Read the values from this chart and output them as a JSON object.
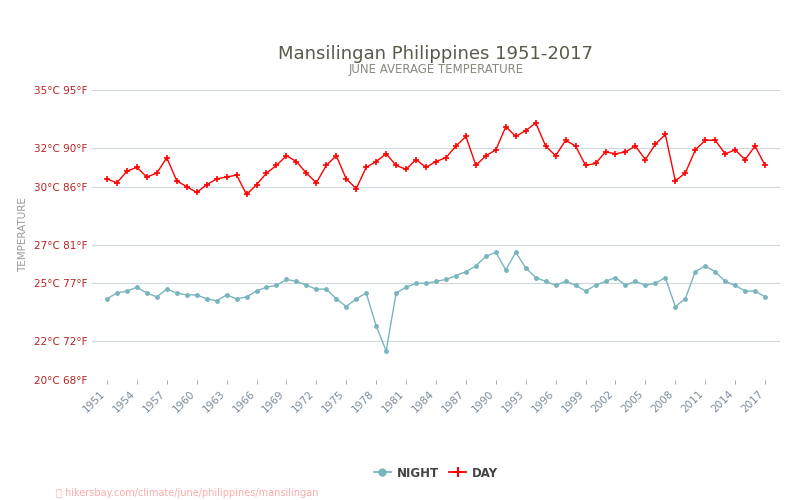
{
  "title": "Mansilingan Philippines 1951-2017",
  "subtitle": "JUNE AVERAGE TEMPERATURE",
  "xlabel_url": "hikersbay.com/climate/june/philippines/mansilingan",
  "ylabel": "TEMPERATURE",
  "years": [
    1951,
    1952,
    1953,
    1954,
    1955,
    1956,
    1957,
    1958,
    1959,
    1960,
    1961,
    1962,
    1963,
    1964,
    1965,
    1966,
    1967,
    1968,
    1969,
    1970,
    1971,
    1972,
    1973,
    1974,
    1975,
    1976,
    1977,
    1978,
    1979,
    1980,
    1981,
    1982,
    1983,
    1984,
    1985,
    1986,
    1987,
    1988,
    1989,
    1990,
    1991,
    1992,
    1993,
    1994,
    1995,
    1996,
    1997,
    1998,
    1999,
    2000,
    2001,
    2002,
    2003,
    2004,
    2005,
    2006,
    2007,
    2008,
    2009,
    2010,
    2011,
    2012,
    2013,
    2014,
    2015,
    2016,
    2017
  ],
  "day_temps": [
    30.4,
    30.2,
    30.8,
    31.0,
    30.5,
    30.7,
    31.5,
    30.3,
    30.0,
    29.7,
    30.1,
    30.4,
    30.5,
    30.6,
    29.6,
    30.1,
    30.7,
    31.1,
    31.6,
    31.3,
    30.7,
    30.2,
    31.1,
    31.6,
    30.4,
    29.9,
    31.0,
    31.3,
    31.7,
    31.1,
    30.9,
    31.4,
    31.0,
    31.3,
    31.5,
    32.1,
    32.6,
    31.1,
    31.6,
    31.9,
    33.1,
    32.6,
    32.9,
    33.3,
    32.1,
    31.6,
    32.4,
    32.1,
    31.1,
    31.2,
    31.8,
    31.7,
    31.8,
    32.1,
    31.4,
    32.2,
    32.7,
    30.3,
    30.7,
    31.9,
    32.4,
    32.4,
    31.7,
    31.9,
    31.4,
    32.1,
    31.1
  ],
  "night_temps": [
    24.2,
    24.5,
    24.6,
    24.8,
    24.5,
    24.3,
    24.7,
    24.5,
    24.4,
    24.4,
    24.2,
    24.1,
    24.4,
    24.2,
    24.3,
    24.6,
    24.8,
    24.9,
    25.2,
    25.1,
    24.9,
    24.7,
    24.7,
    24.2,
    23.8,
    24.2,
    24.5,
    22.8,
    21.5,
    24.5,
    24.8,
    25.0,
    25.0,
    25.1,
    25.2,
    25.4,
    25.6,
    25.9,
    26.4,
    26.6,
    25.7,
    26.6,
    25.8,
    25.3,
    25.1,
    24.9,
    25.1,
    24.9,
    24.6,
    24.9,
    25.1,
    25.3,
    24.9,
    25.1,
    24.9,
    25.0,
    25.3,
    23.8,
    24.2,
    25.6,
    25.9,
    25.6,
    25.1,
    24.9,
    24.6,
    24.6,
    24.3
  ],
  "day_color": "#ff0000",
  "night_color": "#7ab5be",
  "bg_color": "#ffffff",
  "grid_color": "#d0d8e0",
  "title_color": "#5a5a4a",
  "subtitle_color": "#8a8a7a",
  "ylabel_color": "#999999",
  "tick_color": "#7a8a9a",
  "url_color": "#ffaaaa",
  "ylim_min": 20,
  "ylim_max": 35,
  "yticks_c": [
    20,
    22,
    25,
    27,
    30,
    32,
    35
  ],
  "ytick_labels": [
    "20°C 68°F",
    "22°C 72°F",
    "25°C 77°F",
    "27°C 81°F",
    "30°C 86°F",
    "32°C 90°F",
    "35°C 95°F"
  ],
  "xtick_years": [
    1951,
    1954,
    1957,
    1960,
    1963,
    1966,
    1969,
    1972,
    1975,
    1978,
    1981,
    1984,
    1987,
    1990,
    1993,
    1996,
    1999,
    2002,
    2005,
    2008,
    2011,
    2014,
    2017
  ],
  "legend_night": "NIGHT",
  "legend_day": "DAY"
}
